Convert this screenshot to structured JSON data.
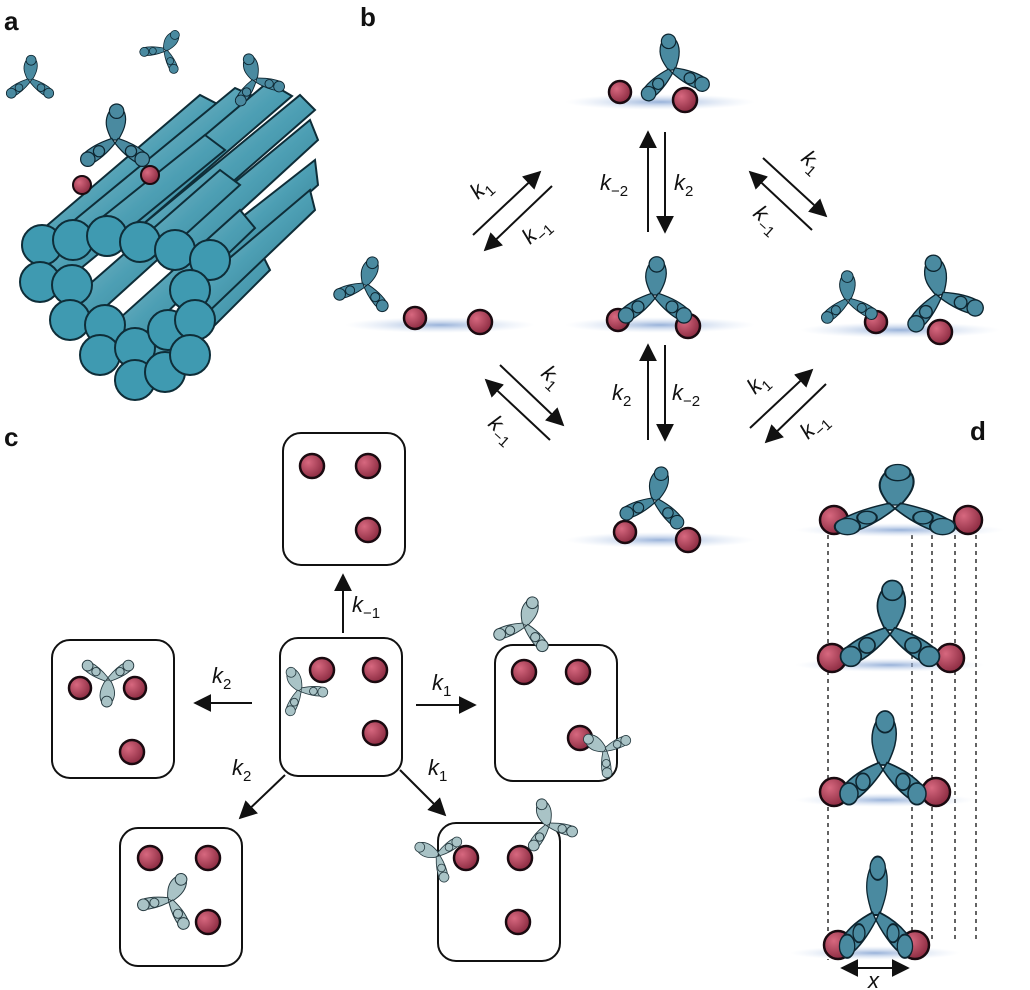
{
  "panels": {
    "a": "a",
    "b": "b",
    "c": "c",
    "d": "d"
  },
  "rates": {
    "k1": {
      "base": "k",
      "sub": "1"
    },
    "km1": {
      "base": "k",
      "sub": "−1"
    },
    "k2": {
      "base": "k",
      "sub": "2"
    },
    "km2": {
      "base": "k",
      "sub": "−2"
    }
  },
  "panel_d": {
    "distance_label": "x"
  },
  "colors": {
    "antibody": "#4a8aa0",
    "antibody_light": "#a9c3c6",
    "antigen": "#a33a52",
    "rod": "#3d9bb2",
    "surface_glow": "#9fb8d8"
  }
}
